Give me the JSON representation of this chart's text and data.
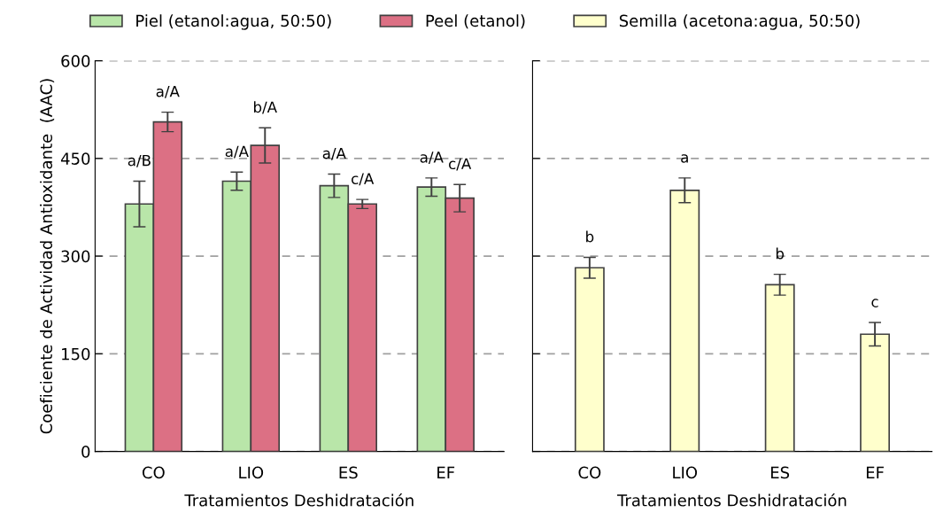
{
  "chart_data": [
    {
      "type": "bar",
      "ylabel": "Coeficiente de Actividad Antioxidante  (AAC)",
      "xlabel": "Tratamientos Deshidratación",
      "categories": [
        "CO",
        "LIO",
        "ES",
        "EF"
      ],
      "ylim": [
        0,
        600
      ],
      "yticks": [
        0,
        150,
        300,
        450,
        600
      ],
      "grid": "y",
      "legend": "top",
      "series": [
        {
          "name": "Piel (etanol:agua, 50:50)",
          "color": "#b9e6a9",
          "values": [
            380,
            415,
            408,
            406
          ],
          "errors": [
            35,
            14,
            18,
            14
          ],
          "value_labels": [
            "a/B",
            "a/A",
            "a/A",
            "a/A"
          ]
        },
        {
          "name": "Peel (etanol)",
          "color": "#dc7084",
          "values": [
            506,
            470,
            380,
            389
          ],
          "errors": [
            15,
            27,
            7,
            21
          ],
          "value_labels": [
            "a/A",
            "b/A",
            "c/A",
            "c/A"
          ]
        }
      ]
    },
    {
      "type": "bar",
      "xlabel": "Tratamientos Deshidratación",
      "categories": [
        "CO",
        "LIO",
        "ES",
        "EF"
      ],
      "ylim": [
        0,
        600
      ],
      "yticks": [
        0,
        150,
        300,
        450,
        600
      ],
      "grid": "y",
      "legend": "top",
      "tick_labels": "x",
      "series": [
        {
          "name": "Semilla (acetona:agua, 50:50)",
          "color": "#ffffcc",
          "values": [
            282,
            401,
            256,
            180
          ],
          "errors": [
            16,
            19,
            16,
            18
          ],
          "value_labels": [
            "b",
            "a",
            "b",
            "c"
          ]
        }
      ]
    }
  ]
}
